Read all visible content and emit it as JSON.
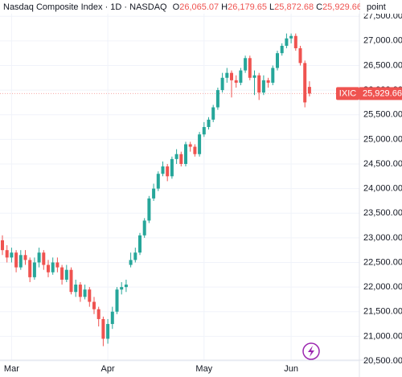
{
  "chart_data": {
    "type": "candlestick",
    "title": "Nasdaq Composite Index · 1D · NASDAQ",
    "ohlc_header": [
      {
        "key": "O",
        "value": "26,065.07"
      },
      {
        "key": "H",
        "value": "26,179.65"
      },
      {
        "key": "L",
        "value": "25,872.68"
      },
      {
        "key": "C",
        "value": "25,929.66"
      }
    ],
    "y_unit": "point",
    "symbol": "IXIC",
    "last_price_label": "25,929.66",
    "up_color": "#26a69a",
    "down_color": "#ef5350",
    "grid": true,
    "categories": [
      null,
      null,
      "Mar",
      null,
      null,
      null,
      null,
      null,
      null,
      null,
      null,
      null,
      null,
      null,
      null,
      null,
      null,
      null,
      null,
      null,
      null,
      null,
      null,
      "Apr",
      null,
      null,
      null,
      null,
      null,
      null,
      null,
      null,
      null,
      null,
      null,
      null,
      null,
      null,
      null,
      null,
      null,
      null,
      null,
      null,
      "May",
      null,
      null,
      null,
      null,
      null,
      null,
      null,
      null,
      null,
      null,
      null,
      null,
      null,
      null,
      null,
      null,
      null,
      null,
      "Jun",
      null,
      null,
      null,
      null
    ],
    "open": [
      22950,
      22750,
      22600,
      22700,
      22400,
      22650,
      22550,
      22200,
      22500,
      22700,
      22450,
      22300,
      22500,
      22400,
      22150,
      22350,
      21900,
      22050,
      21800,
      21950,
      21700,
      21550,
      21350,
      20950,
      21250,
      21500,
      21950,
      22000,
      22450,
      22550,
      22700,
      23050,
      23350,
      23800,
      24000,
      24300,
      24450,
      24250,
      24600,
      24700,
      24500,
      24900,
      24850,
      24700,
      25100,
      25250,
      25400,
      25650,
      26000,
      26250,
      26350,
      26200,
      26150,
      26400,
      26650,
      26250,
      26300,
      25950,
      26200,
      26150,
      26450,
      26750,
      26900,
      27050,
      27100,
      26850,
      26550,
      26065.07
    ],
    "high": [
      23050,
      22850,
      22800,
      22750,
      22750,
      22750,
      22600,
      22600,
      22800,
      22750,
      22550,
      22600,
      22600,
      22450,
      22450,
      22400,
      22150,
      22100,
      22050,
      22000,
      21800,
      21600,
      21400,
      21350,
      21600,
      22000,
      22100,
      22150,
      22700,
      22800,
      23100,
      23400,
      23850,
      24100,
      24350,
      24550,
      24500,
      24650,
      24800,
      24750,
      24950,
      24950,
      24900,
      25150,
      25350,
      25450,
      25700,
      26050,
      26350,
      26450,
      26400,
      26300,
      26450,
      26700,
      26700,
      26400,
      26350,
      26300,
      26250,
      26500,
      26800,
      26950,
      27150,
      27150,
      27150,
      26900,
      26600,
      26179.65
    ],
    "low": [
      22650,
      22500,
      22500,
      22300,
      22350,
      22450,
      22100,
      22150,
      22400,
      22350,
      22200,
      22250,
      22300,
      22050,
      22100,
      21850,
      21800,
      21700,
      21750,
      21600,
      21450,
      21200,
      20800,
      20850,
      21150,
      21450,
      21850,
      21900,
      22400,
      22500,
      22650,
      23000,
      23300,
      23750,
      23950,
      24250,
      24150,
      24200,
      24500,
      24450,
      24450,
      24750,
      24650,
      24650,
      25050,
      25200,
      25350,
      25600,
      25950,
      26150,
      25850,
      26050,
      26100,
      26350,
      26200,
      25900,
      25800,
      25900,
      26050,
      26100,
      26400,
      26700,
      26850,
      26950,
      26800,
      26500,
      25650,
      25872.68
    ],
    "close": [
      22750,
      22600,
      22700,
      22400,
      22650,
      22550,
      22200,
      22500,
      22700,
      22450,
      22300,
      22500,
      22400,
      22150,
      22350,
      21900,
      22050,
      21800,
      21950,
      21700,
      21550,
      21350,
      20950,
      21250,
      21500,
      21950,
      22000,
      22050,
      22550,
      22700,
      23050,
      23350,
      23800,
      24000,
      24300,
      24450,
      24250,
      24600,
      24700,
      24500,
      24900,
      24850,
      24700,
      25100,
      25250,
      25400,
      25650,
      26000,
      26250,
      26350,
      26200,
      26150,
      26400,
      26650,
      26250,
      26300,
      25950,
      26200,
      26150,
      26450,
      26750,
      26900,
      27050,
      27100,
      26850,
      26550,
      25750,
      25929.66
    ],
    "ylim": [
      20500,
      27830
    ],
    "yticks": [
      {
        "value": 20500,
        "label": "20,500.00"
      },
      {
        "value": 21000,
        "label": "21,000.00"
      },
      {
        "value": 21500,
        "label": "21,500.00"
      },
      {
        "value": 22000,
        "label": "22,000.00"
      },
      {
        "value": 22500,
        "label": "22,500.00"
      },
      {
        "value": 23000,
        "label": "23,000.00"
      },
      {
        "value": 23500,
        "label": "23,500.00"
      },
      {
        "value": 24000,
        "label": "24,000.00"
      },
      {
        "value": 24500,
        "label": "24,500.00"
      },
      {
        "value": 25000,
        "label": "25,000.00"
      },
      {
        "value": 25500,
        "label": "25,500.00"
      },
      {
        "value": 26000,
        "label": "26,000.00"
      },
      {
        "value": 26500,
        "label": "26,500.00"
      },
      {
        "value": 27000,
        "label": "27,000.00"
      },
      {
        "value": 27500,
        "label": "27,500.00"
      }
    ],
    "last_price": 25929.66
  }
}
